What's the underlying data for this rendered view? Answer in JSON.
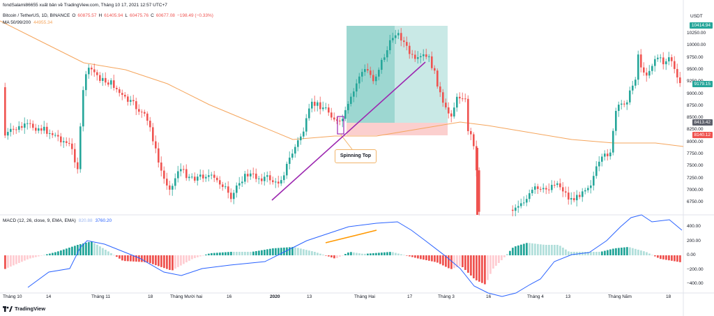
{
  "header": {
    "publisher": "fondSalami86655 xuất bản về TradingView.com, Tháng 10 17, 2021 12:57 UTC+7",
    "symbol": "Bitcoin / TetherUS, 1D, BINANCE",
    "o_label": "O",
    "o_value": "60875.57",
    "h_label": "H",
    "h_value": "61405.94",
    "l_label": "L",
    "l_value": "60475.76",
    "c_label": "C",
    "c_value": "60677.08",
    "change": "−198.49 (−0.33%)",
    "ma_label": "MA 50/99/200",
    "ma_value": "44955.34"
  },
  "currency": "USDT",
  "price_axis": [
    "10250.00",
    "10000.00",
    "9750.00",
    "9500.00",
    "9250.00",
    "9000.00",
    "8750.00",
    "8500.00",
    "8250.00",
    "8000.00",
    "7750.00",
    "7500.00",
    "7250.00",
    "7000.00",
    "6750.00"
  ],
  "price_badges": {
    "top": "10414.94",
    "current": "9179.15",
    "entry": "8413.42",
    "stop": "8140.12"
  },
  "macd": {
    "label": "MACD (12, 26, close, 9, EMA, EMA)",
    "val1": "820.88",
    "val2": "3760.20",
    "axis": [
      "400.00",
      "200.00",
      "0.00",
      "−200.00",
      "−400.00"
    ]
  },
  "time_axis": [
    "Tháng 10",
    "14",
    "Tháng 11",
    "18",
    "Tháng Mười hai",
    "16",
    "2020",
    "13",
    "Tháng Hai",
    "17",
    "Tháng 3",
    "16",
    "Tháng 4",
    "13",
    "Tháng Năm",
    "18"
  ],
  "annotation": "Spinning Top",
  "footer": "TradingView",
  "colors": {
    "up": "#26a69a",
    "down": "#ef5350",
    "ma": "#f5a55c",
    "trend": "#9c27b0",
    "macd_line": "#2962ff",
    "signal": "#ff9800"
  }
}
